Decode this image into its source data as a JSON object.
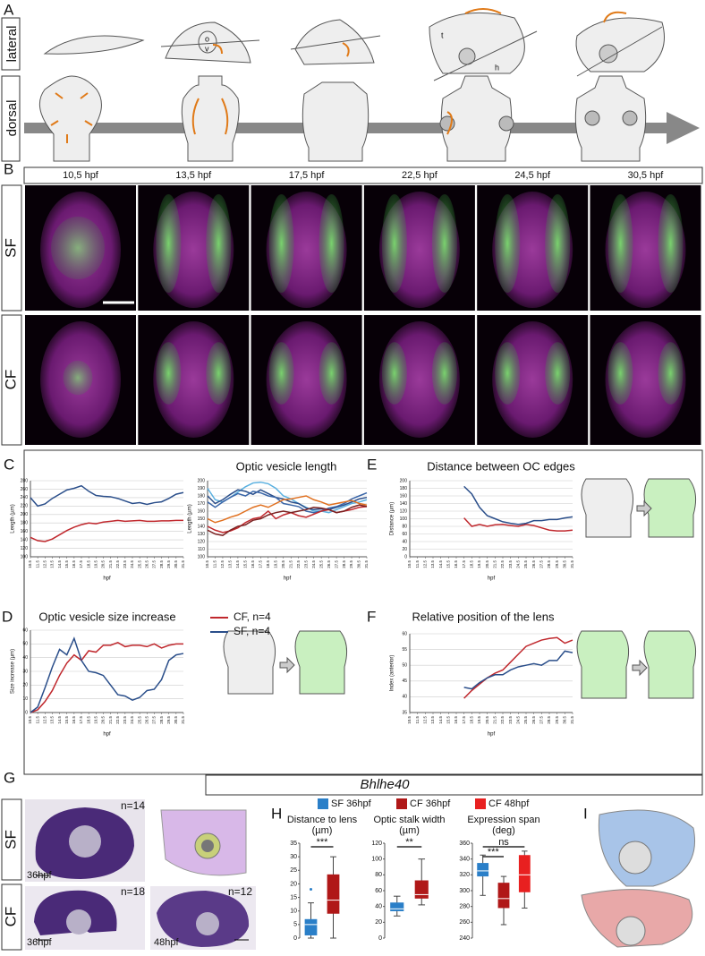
{
  "figure": {
    "a": {
      "label": "A",
      "rows": [
        "lateral",
        "dorsal"
      ],
      "marks": [
        "o",
        "v",
        "t",
        "h"
      ]
    },
    "b": {
      "label": "B",
      "stages": [
        "10,5 hpf",
        "13,5 hpf",
        "17,5 hpf",
        "22,5 hpf",
        "24,5 hpf",
        "30,5 hpf"
      ],
      "rows": [
        "SF",
        "CF"
      ]
    },
    "g": {
      "label": "G",
      "gene": "Bhlhe40",
      "rows": [
        "SF",
        "CF"
      ],
      "counts": [
        "n=14",
        "n=18",
        "n=12"
      ],
      "stages": [
        "36hpf",
        "36hpf",
        "48hpf"
      ]
    },
    "h": {
      "label": "H"
    },
    "i": {
      "label": "I"
    }
  },
  "chart_data": [
    {
      "type": "line",
      "panel": "C",
      "title": "Optic vesicle length",
      "ylabel": "Length (µm)",
      "xlabel": "hpf",
      "x": [
        10.5,
        11.5,
        12.5,
        13.5,
        14.5,
        15.5,
        16.5,
        17.5,
        18.5,
        19.5,
        20.5,
        21.5,
        22.5,
        23.5,
        24.5,
        25.5,
        26.5,
        27.5,
        28.5,
        29.5,
        30.5,
        31.5
      ],
      "xlim": [
        10.5,
        31.5
      ],
      "xticks": [
        10.5,
        11.5,
        12.5,
        13.5,
        14.5,
        15.5,
        16.5,
        17.5,
        18.5,
        19.5,
        20.5,
        21.5,
        22.5,
        23.5,
        24.5,
        25.5,
        26.5,
        27.5,
        28.5,
        29.5,
        30.5,
        31.5
      ],
      "ylim": [
        100,
        280
      ],
      "yticks": [
        100,
        120,
        140,
        160,
        180,
        200,
        220,
        240,
        260,
        280
      ],
      "grid": true,
      "series": [
        {
          "color": "#c0282d",
          "values": [
            146,
            138,
            136,
            142,
            152,
            162,
            170,
            176,
            180,
            178,
            182,
            184,
            186,
            184,
            185,
            186,
            184,
            184,
            185,
            185,
            186,
            186
          ]
        },
        {
          "color": "#2a4e8a",
          "values": [
            240,
            220,
            225,
            238,
            248,
            258,
            262,
            268,
            255,
            245,
            243,
            242,
            238,
            232,
            226,
            228,
            224,
            228,
            230,
            238,
            248,
            252
          ]
        }
      ]
    },
    {
      "type": "line",
      "ylabel": "Length (µm)",
      "xlabel": "hpf",
      "x": [
        10.5,
        11.5,
        12.5,
        13.5,
        14.5,
        15.5,
        16.5,
        17.5,
        18.5,
        19.5,
        20.5,
        21.5,
        22.5,
        23.5,
        24.5,
        25.5,
        26.5,
        27.5,
        28.5,
        29.5,
        30.5,
        31.5
      ],
      "xlim": [
        10.5,
        31.5
      ],
      "xticks": [
        10.5,
        11.5,
        12.5,
        13.5,
        14.5,
        15.5,
        16.5,
        17.5,
        18.5,
        19.5,
        20.5,
        21.5,
        22.5,
        23.5,
        24.5,
        25.5,
        26.5,
        27.5,
        28.5,
        29.5,
        30.5,
        31.5
      ],
      "ylim": [
        100,
        200
      ],
      "yticks": [
        100,
        110,
        120,
        130,
        140,
        150,
        160,
        170,
        180,
        190,
        200
      ],
      "grid": true,
      "series": [
        {
          "color": "#5ab0e0",
          "values": [
            190,
            175,
            172,
            178,
            185,
            192,
            197,
            198,
            196,
            190,
            180,
            176,
            170,
            165,
            160,
            160,
            158,
            162,
            166,
            170,
            172,
            175
          ]
        },
        {
          "color": "#2a4e8a",
          "values": [
            180,
            170,
            175,
            182,
            188,
            186,
            182,
            188,
            183,
            178,
            176,
            172,
            170,
            164,
            162,
            163,
            162,
            165,
            168,
            172,
            176,
            178
          ]
        },
        {
          "color": "#3a66a8",
          "values": [
            172,
            165,
            172,
            178,
            183,
            180,
            186,
            184,
            180,
            178,
            170,
            168,
            166,
            160,
            158,
            160,
            164,
            166,
            170,
            176,
            180,
            184
          ]
        },
        {
          "color": "#c0282d",
          "values": [
            140,
            135,
            132,
            134,
            138,
            145,
            150,
            152,
            160,
            150,
            155,
            158,
            154,
            152,
            156,
            160,
            162,
            158,
            160,
            162,
            165,
            166
          ]
        },
        {
          "color": "#e07020",
          "values": [
            150,
            145,
            148,
            152,
            155,
            160,
            165,
            168,
            165,
            170,
            175,
            176,
            178,
            180,
            175,
            172,
            168,
            170,
            172,
            174,
            170,
            168
          ]
        },
        {
          "color": "#7a2020",
          "values": [
            135,
            130,
            128,
            135,
            140,
            142,
            148,
            150,
            155,
            158,
            160,
            158,
            160,
            162,
            165,
            164,
            162,
            158,
            160,
            165,
            168,
            166
          ]
        }
      ]
    },
    {
      "type": "line",
      "panel": "E",
      "title": "Distance between OC edges",
      "ylabel": "Distance (µm)",
      "xlabel": "hpf",
      "x": [
        10.5,
        11.5,
        12.5,
        13.5,
        14.5,
        15.5,
        16.5,
        17.5,
        18.5,
        19.5,
        20.5,
        21.5,
        22.5,
        23.5,
        24.5,
        25.5,
        26.5,
        27.5,
        28.5,
        29.5,
        30.5,
        31.5
      ],
      "xlim": [
        10.5,
        31.5
      ],
      "xticks": [
        10.5,
        11.5,
        12.5,
        13.5,
        14.5,
        15.5,
        16.5,
        17.5,
        18.5,
        19.5,
        20.5,
        21.5,
        22.5,
        23.5,
        24.5,
        25.5,
        26.5,
        27.5,
        28.5,
        29.5,
        30.5,
        31.5
      ],
      "ylim": [
        0,
        200
      ],
      "yticks": [
        0,
        20,
        40,
        60,
        80,
        100,
        120,
        140,
        160,
        180,
        200
      ],
      "grid": true,
      "series": [
        {
          "color": "#c0282d",
          "values": [
            null,
            null,
            null,
            null,
            null,
            null,
            null,
            102,
            80,
            85,
            80,
            84,
            85,
            82,
            80,
            85,
            82,
            76,
            70,
            68,
            68,
            70
          ]
        },
        {
          "color": "#2a4e8a",
          "values": [
            null,
            null,
            null,
            null,
            null,
            null,
            null,
            185,
            165,
            130,
            108,
            100,
            92,
            88,
            85,
            88,
            95,
            95,
            98,
            98,
            102,
            105
          ]
        }
      ]
    },
    {
      "type": "line",
      "panel": "D",
      "title": "Optic vesicle size increase",
      "ylabel": "Size increase (µm)",
      "xlabel": "hpf",
      "x": [
        10.5,
        11.5,
        12.5,
        13.5,
        14.5,
        15.5,
        16.5,
        17.5,
        18.5,
        19.5,
        20.5,
        21.5,
        22.5,
        23.5,
        24.5,
        25.5,
        26.5,
        27.5,
        28.5,
        29.5,
        30.5,
        31.5
      ],
      "xlim": [
        10.5,
        31.5
      ],
      "xticks": [
        10.5,
        11.5,
        12.5,
        13.5,
        14.5,
        15.5,
        16.5,
        17.5,
        18.5,
        19.5,
        20.5,
        21.5,
        22.5,
        23.5,
        24.5,
        25.5,
        26.5,
        27.5,
        28.5,
        29.5,
        30.5,
        31.5
      ],
      "ylim": [
        0,
        60
      ],
      "yticks": [
        0,
        10,
        20,
        30,
        40,
        50,
        60
      ],
      "grid": true,
      "series": [
        {
          "name": "CF, n=4",
          "color": "#c0282d",
          "values": [
            0,
            2,
            8,
            16,
            27,
            36,
            42,
            38,
            45,
            44,
            49,
            49,
            51,
            48,
            49,
            49,
            48,
            50,
            47,
            49,
            50,
            50
          ]
        },
        {
          "name": "SF, n=4",
          "color": "#2a4e8a",
          "values": [
            0,
            4,
            18,
            33,
            46,
            42,
            54,
            38,
            30,
            29,
            27,
            20,
            13,
            12,
            9,
            11,
            16,
            17,
            24,
            38,
            42,
            43
          ]
        }
      ]
    },
    {
      "type": "line",
      "panel": "F",
      "title": "Relative position of the lens",
      "ylabel": "Index (anterior)",
      "xlabel": "hpf",
      "x": [
        10.5,
        11.5,
        12.5,
        13.5,
        14.5,
        15.5,
        16.5,
        17.5,
        18.5,
        19.5,
        20.5,
        21.5,
        22.5,
        23.5,
        24.5,
        25.5,
        26.5,
        27.5,
        28.5,
        29.5,
        30.5,
        31.5
      ],
      "xlim": [
        10.5,
        31.5
      ],
      "xticks": [
        10.5,
        11.5,
        12.5,
        13.5,
        14.5,
        15.5,
        16.5,
        17.5,
        18.5,
        19.5,
        20.5,
        21.5,
        22.5,
        23.5,
        24.5,
        25.5,
        26.5,
        27.5,
        28.5,
        29.5,
        30.5,
        31.5
      ],
      "ylim": [
        35,
        60
      ],
      "yticks": [
        35,
        40,
        45,
        50,
        55,
        60
      ],
      "grid": true,
      "series": [
        {
          "color": "#c0282d",
          "values": [
            null,
            null,
            null,
            null,
            null,
            null,
            null,
            39.5,
            42,
            44,
            46,
            47.5,
            48.5,
            51,
            53.5,
            56,
            57,
            58,
            58.5,
            58.8,
            57,
            58
          ]
        },
        {
          "color": "#2a4e8a",
          "values": [
            null,
            null,
            null,
            null,
            null,
            null,
            null,
            43,
            42.5,
            44.5,
            46,
            47,
            47,
            48.5,
            49.5,
            50,
            50.5,
            50,
            51.5,
            51.5,
            54.5,
            54
          ]
        }
      ]
    },
    {
      "type": "box",
      "title": [
        "Distance to lens",
        "(µm)"
      ],
      "ylim": [
        0,
        35
      ],
      "yticks": [
        0,
        5,
        10,
        15,
        20,
        25,
        30,
        35
      ],
      "annotations": [
        "***"
      ],
      "series": [
        {
          "name": "SF 36hpf",
          "color": "#2a7fc8",
          "low": 0,
          "q1": 1,
          "median": 5,
          "q3": 7,
          "high": 13,
          "outliers": [
            18
          ]
        },
        {
          "name": "CF 36hpf",
          "color": "#b01818",
          "low": 0,
          "q1": 9,
          "median": 14,
          "q3": 23.5,
          "high": 30
        },
        {
          "name": "CF 48hpf",
          "color": "#e82020"
        }
      ]
    },
    {
      "type": "box",
      "title": [
        "Optic stalk width",
        "(µm)"
      ],
      "ylim": [
        0,
        120
      ],
      "yticks": [
        0,
        20,
        40,
        60,
        80,
        100,
        120
      ],
      "annotations": [
        "**"
      ],
      "series": [
        {
          "color": "#2a7fc8",
          "low": 28,
          "q1": 34,
          "median": 37,
          "q3": 45,
          "high": 53
        },
        {
          "color": "#b01818",
          "low": 42,
          "q1": 50,
          "median": 55,
          "q3": 73,
          "high": 100
        }
      ]
    },
    {
      "type": "box",
      "title": [
        "Expression span",
        "(deg)"
      ],
      "ylim": [
        240,
        360
      ],
      "yticks": [
        240,
        260,
        280,
        300,
        320,
        340,
        360
      ],
      "annotations": [
        "ns",
        "***"
      ],
      "series": [
        {
          "color": "#2a7fc8",
          "low": 294,
          "q1": 318,
          "median": 325,
          "q3": 335,
          "high": 345
        },
        {
          "color": "#b01818",
          "low": 257,
          "q1": 278,
          "median": 290,
          "q3": 310,
          "high": 318
        },
        {
          "color": "#e82020",
          "low": 278,
          "q1": 298,
          "median": 320,
          "q3": 345,
          "high": 350
        }
      ]
    }
  ]
}
